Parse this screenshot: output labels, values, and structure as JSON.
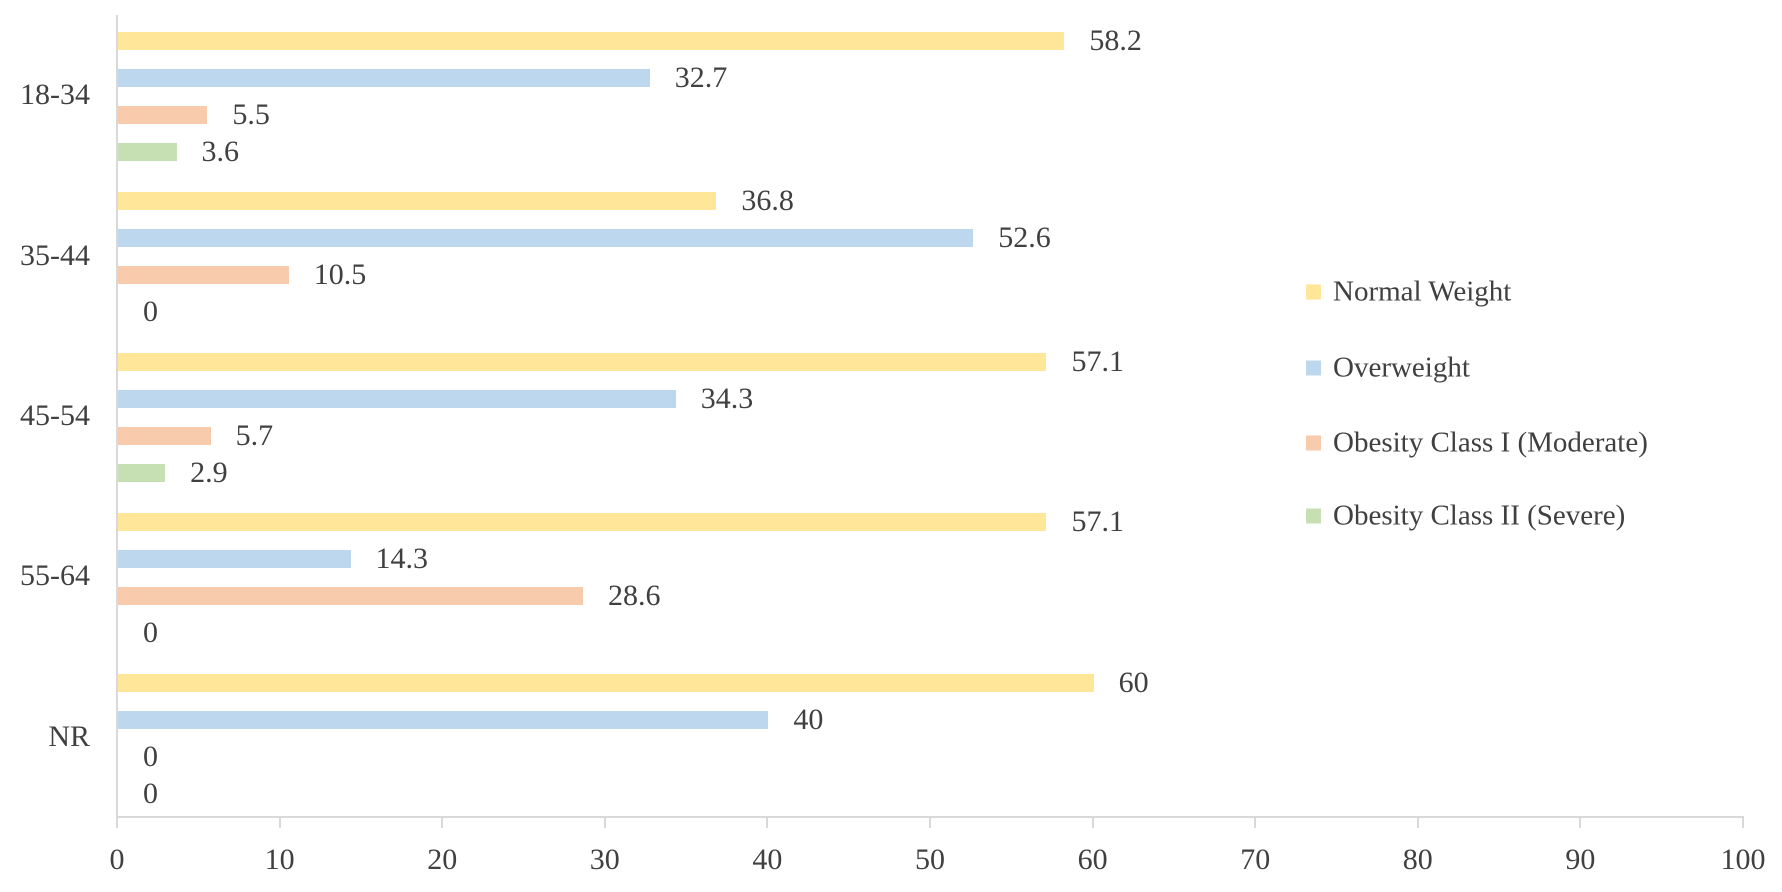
{
  "chart_data": {
    "type": "bar",
    "orientation": "horizontal",
    "title": "",
    "xlabel": "",
    "ylabel": "",
    "xlim": [
      0,
      100
    ],
    "x_ticks": [
      "0",
      "10",
      "20",
      "30",
      "40",
      "50",
      "60",
      "70",
      "80",
      "90",
      "100"
    ],
    "x_tick_values": [
      0,
      10,
      20,
      30,
      40,
      50,
      60,
      70,
      80,
      90,
      100
    ],
    "grid": false,
    "legend_position": "right",
    "categories": [
      "18-34",
      "35-44",
      "45-54",
      "55-64",
      "NR"
    ],
    "series": [
      {
        "name": "Normal Weight",
        "color": "#FFE699",
        "values": [
          58.2,
          36.8,
          57.1,
          57.1,
          60
        ],
        "labels": [
          "58.2",
          "36.8",
          "57.1",
          "57.1",
          "60"
        ]
      },
      {
        "name": "Overweight",
        "color": "#BDD7EE",
        "values": [
          32.7,
          52.6,
          34.3,
          14.3,
          40
        ],
        "labels": [
          "32.7",
          "52.6",
          "34.3",
          "14.3",
          "40"
        ]
      },
      {
        "name": "Obesity Class I (Moderate)",
        "color": "#F8CBAD",
        "values": [
          5.5,
          10.5,
          5.7,
          28.6,
          0
        ],
        "labels": [
          "5.5",
          "10.5",
          "5.7",
          "28.6",
          "0"
        ]
      },
      {
        "name": "Obesity Class II (Severe)",
        "color": "#C6E0B4",
        "values": [
          3.6,
          0,
          2.9,
          0,
          0
        ],
        "labels": [
          "3.6",
          "0",
          "2.9",
          "0",
          "0"
        ]
      }
    ]
  },
  "colors": {
    "background": "#FFFFFF",
    "axis_line": "#D9D9D9",
    "text": "#404040"
  }
}
